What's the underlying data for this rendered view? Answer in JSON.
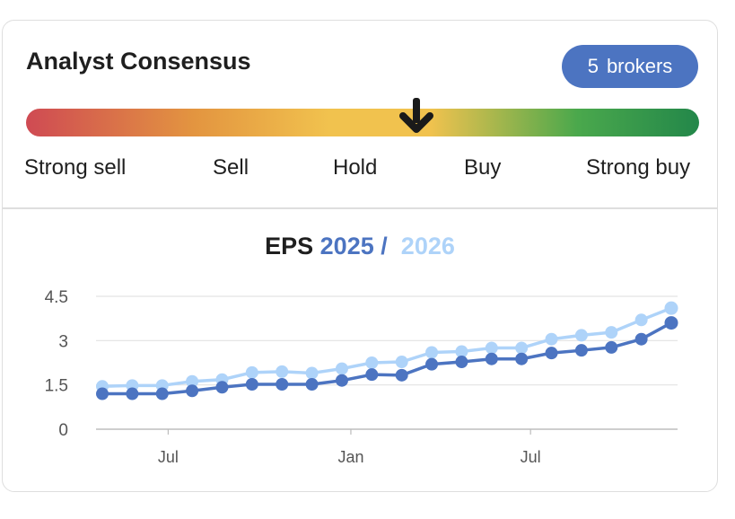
{
  "consensus": {
    "title": "Analyst Consensus",
    "brokers_count": "5",
    "brokers_label": "brokers",
    "scale": [
      "Strong sell",
      "Sell",
      "Hold",
      "Buy",
      "Strong buy"
    ],
    "position": 0.58
  },
  "chart_data": {
    "type": "line",
    "title_prefix": "EPS",
    "title_series_1": "2025",
    "title_separator": "/",
    "title_series_2": "2026",
    "x_tick_labels": [
      "Jul",
      "Jan",
      "Jul"
    ],
    "y_ticks": [
      "0",
      "1.5",
      "3",
      "4.5"
    ],
    "ylim": [
      0,
      4.5
    ],
    "grid": true,
    "series": [
      {
        "name": "2025",
        "color": "#4c74c1",
        "values": [
          1.2,
          1.2,
          1.2,
          1.3,
          1.42,
          1.52,
          1.52,
          1.52,
          1.65,
          1.85,
          1.83,
          2.2,
          2.28,
          2.38,
          2.38,
          2.58,
          2.67,
          2.77,
          3.05,
          3.6
        ]
      },
      {
        "name": "2026",
        "color": "#aed3f9",
        "values": [
          1.45,
          1.48,
          1.48,
          1.62,
          1.68,
          1.92,
          1.95,
          1.9,
          2.05,
          2.25,
          2.28,
          2.6,
          2.63,
          2.75,
          2.75,
          3.05,
          3.18,
          3.28,
          3.7,
          4.1
        ]
      }
    ]
  }
}
